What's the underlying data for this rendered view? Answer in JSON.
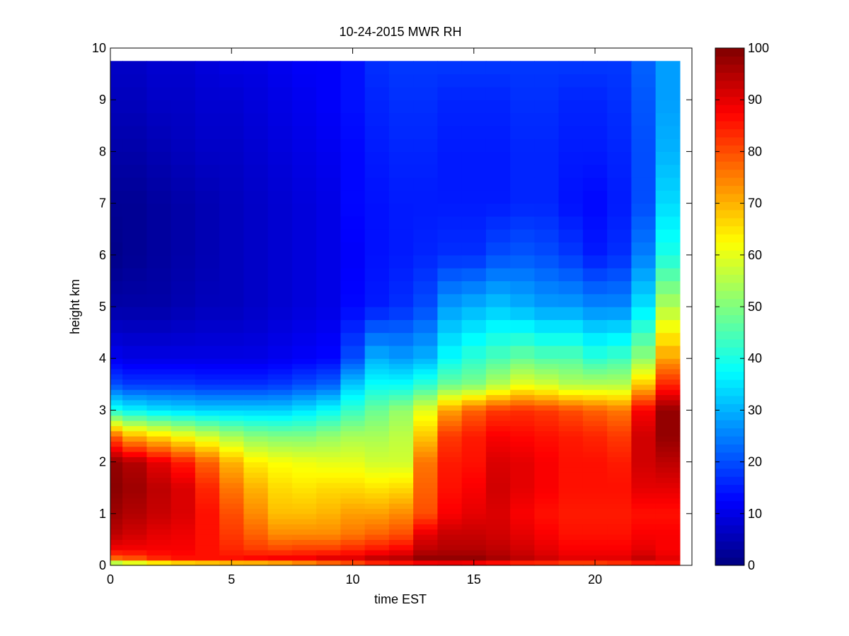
{
  "chart_data": {
    "type": "heatmap",
    "title": "10-24-2015 MWR RH",
    "xlabel": "time EST",
    "ylabel": "height km",
    "xlim": [
      0,
      24
    ],
    "ylim": [
      0,
      10
    ],
    "x_ticks": [
      0,
      5,
      10,
      15,
      20
    ],
    "y_ticks": [
      0,
      1,
      2,
      3,
      4,
      5,
      6,
      7,
      8,
      9,
      10
    ],
    "x_tick_labels": [
      "0",
      "5",
      "10",
      "15",
      "20"
    ],
    "y_tick_labels": [
      "0",
      "1",
      "2",
      "3",
      "4",
      "5",
      "6",
      "7",
      "8",
      "9",
      "10"
    ],
    "colorbar": {
      "min": 0,
      "max": 100,
      "ticks": [
        0,
        10,
        20,
        30,
        40,
        50,
        60,
        70,
        80,
        90,
        100
      ],
      "tick_labels": [
        "0",
        "10",
        "20",
        "30",
        "40",
        "50",
        "60",
        "70",
        "80",
        "90",
        "100"
      ],
      "colormap": "jet"
    },
    "grid": false,
    "data_extent": {
      "x": [
        0,
        23.5
      ],
      "y": [
        0,
        9.75
      ]
    },
    "time_edges": [
      0,
      0.5,
      1.5,
      2.5,
      3.5,
      4.5,
      5.5,
      6.5,
      7.5,
      8.5,
      9.5,
      10.5,
      11.5,
      12.5,
      13.5,
      14.5,
      15.5,
      16.5,
      17.5,
      18.5,
      19.5,
      20.5,
      21.5,
      22.5,
      23.5
    ],
    "height_edges": [
      0,
      0.1,
      0.2,
      0.3,
      0.4,
      0.5,
      0.6,
      0.7,
      0.8,
      0.9,
      1.0,
      1.1,
      1.2,
      1.3,
      1.4,
      1.5,
      1.6,
      1.7,
      1.8,
      1.9,
      2.0,
      2.1,
      2.2,
      2.3,
      2.4,
      2.5,
      2.6,
      2.7,
      2.8,
      2.9,
      3.0,
      3.1,
      3.2,
      3.3,
      3.4,
      3.5,
      3.6,
      3.7,
      3.8,
      3.9,
      4.0,
      4.25,
      4.5,
      4.75,
      5.0,
      5.25,
      5.5,
      5.75,
      6.0,
      6.25,
      6.5,
      6.75,
      7.0,
      7.25,
      7.5,
      7.75,
      8.0,
      8.25,
      8.5,
      8.75,
      9.0,
      9.25,
      9.5,
      9.75
    ],
    "rh_profiles": {
      "heights": [
        0,
        0.15,
        0.3,
        0.6,
        1.0,
        1.5,
        2.0,
        2.5,
        3.0,
        3.5,
        4.0,
        5.0,
        6.0,
        7.0,
        8.0,
        9.0,
        9.75
      ],
      "columns": [
        [
          45,
          78,
          88,
          94,
          97,
          99,
          98,
          78,
          40,
          20,
          11,
          4,
          1,
          2,
          4,
          6,
          7
        ],
        [
          50,
          80,
          88,
          92,
          95,
          97,
          95,
          70,
          37,
          18,
          10,
          4,
          2,
          2,
          4,
          6,
          7
        ],
        [
          55,
          84,
          88,
          90,
          93,
          94,
          90,
          66,
          35,
          18,
          10,
          4,
          3,
          3,
          5,
          7,
          8
        ],
        [
          58,
          86,
          88,
          89,
          91,
          91,
          85,
          62,
          34,
          18,
          10,
          5,
          4,
          4,
          6,
          7,
          8
        ],
        [
          60,
          86,
          86,
          86,
          86,
          84,
          78,
          58,
          33,
          17,
          10,
          6,
          5,
          5,
          7,
          8,
          9
        ],
        [
          62,
          86,
          84,
          82,
          80,
          76,
          70,
          54,
          33,
          17,
          10,
          6,
          6,
          6,
          7,
          8,
          10
        ],
        [
          62,
          87,
          82,
          78,
          74,
          70,
          64,
          51,
          33,
          17,
          10,
          7,
          7,
          7,
          8,
          9,
          10
        ],
        [
          64,
          88,
          81,
          74,
          69,
          66,
          62,
          50,
          33,
          18,
          11,
          8,
          8,
          8,
          9,
          10,
          11
        ],
        [
          68,
          88,
          82,
          74,
          69,
          65,
          61,
          50,
          35,
          20,
          12,
          9,
          9,
          9,
          10,
          11,
          12
        ],
        [
          72,
          90,
          82,
          74,
          70,
          66,
          60,
          52,
          38,
          22,
          13,
          10,
          10,
          10,
          11,
          12,
          12
        ],
        [
          76,
          90,
          84,
          76,
          72,
          66,
          60,
          54,
          43,
          32,
          20,
          13,
          12,
          13,
          13,
          14,
          14
        ],
        [
          80,
          93,
          86,
          78,
          72,
          65,
          58,
          54,
          48,
          38,
          30,
          15,
          14,
          14,
          15,
          16,
          17
        ],
        [
          82,
          94,
          88,
          80,
          74,
          66,
          58,
          56,
          52,
          38,
          28,
          17,
          15,
          15,
          16,
          17,
          18
        ],
        [
          84,
          98,
          94,
          90,
          80,
          78,
          76,
          68,
          60,
          42,
          30,
          20,
          16,
          15,
          16,
          17,
          18
        ],
        [
          85,
          98,
          95,
          93,
          88,
          86,
          85,
          82,
          72,
          48,
          38,
          28,
          17,
          15,
          15,
          16,
          18
        ],
        [
          84,
          98,
          95,
          93,
          90,
          88,
          86,
          85,
          78,
          50,
          42,
          30,
          17,
          15,
          15,
          16,
          18
        ],
        [
          82,
          96,
          94,
          92,
          91,
          92,
          91,
          88,
          82,
          55,
          45,
          32,
          20,
          15,
          15,
          16,
          18
        ],
        [
          80,
          94,
          92,
          90,
          88,
          90,
          90,
          87,
          83,
          60,
          48,
          30,
          21,
          16,
          16,
          17,
          18
        ],
        [
          80,
          92,
          90,
          88,
          86,
          88,
          88,
          86,
          82,
          58,
          46,
          28,
          20,
          16,
          16,
          17,
          18
        ],
        [
          78,
          90,
          88,
          86,
          85,
          86,
          86,
          85,
          80,
          55,
          46,
          28,
          18,
          14,
          15,
          16,
          18
        ],
        [
          78,
          90,
          88,
          86,
          85,
          86,
          86,
          84,
          78,
          55,
          42,
          26,
          15,
          13,
          15,
          16,
          18
        ],
        [
          80,
          90,
          88,
          86,
          85,
          86,
          85,
          82,
          76,
          55,
          44,
          26,
          17,
          15,
          16,
          17,
          18
        ],
        [
          82,
          93,
          90,
          88,
          86,
          90,
          92,
          92,
          88,
          68,
          52,
          35,
          25,
          20,
          20,
          21,
          22
        ],
        [
          84,
          90,
          88,
          88,
          86,
          90,
          94,
          98,
          98,
          84,
          72,
          55,
          40,
          34,
          30,
          28,
          28
        ]
      ]
    }
  }
}
